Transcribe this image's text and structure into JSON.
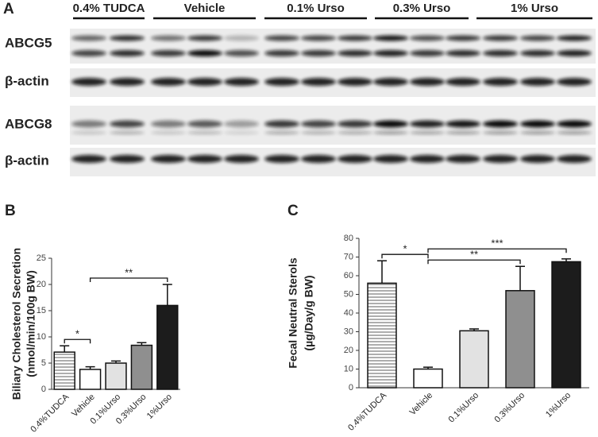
{
  "panel_a": {
    "label": "A",
    "groups": [
      "0.4% TUDCA",
      "Vehicle",
      "0.1% Urso",
      "0.3% Urso",
      "1% Urso"
    ],
    "rows": [
      "ABCG5",
      "β-actin",
      "ABCG8",
      "β-actin"
    ]
  },
  "chart_data": [
    {
      "type": "bar",
      "panel_label": "B",
      "ylabel": [
        "Biliary Cholesterol Secretion",
        "(nmol/min/100g BW)"
      ],
      "categories": [
        "0.4%TUDCA",
        "Vehicle",
        "0.1%Urso",
        "0.3%Urso",
        "1%Urso"
      ],
      "values": [
        7.1,
        3.8,
        5.0,
        8.4,
        16.0
      ],
      "errors": [
        1.2,
        0.5,
        0.4,
        0.5,
        4.0
      ],
      "colors": [
        "#ffffff",
        "#ffffff",
        "#e2e2e2",
        "#8f8f8f",
        "#1c1c1c"
      ],
      "hatched": [
        true,
        false,
        false,
        false,
        false
      ],
      "ylim": [
        0,
        25
      ],
      "yticks": [
        0,
        5,
        10,
        15,
        20,
        25
      ],
      "brackets": [
        {
          "from": 0,
          "to": 1,
          "label": "*"
        },
        {
          "from": 1,
          "to": 4,
          "label": "**"
        }
      ]
    },
    {
      "type": "bar",
      "panel_label": "C",
      "ylabel": [
        "Fecal Neutral Sterols",
        "(µg/Day/g BW)"
      ],
      "categories": [
        "0.4%TUDCA",
        "Vehicle",
        "0.1%Urso",
        "0.3%Urso",
        "1%Urso"
      ],
      "values": [
        56,
        10,
        30.5,
        52,
        67.5
      ],
      "errors": [
        12,
        1,
        1,
        13,
        1.5
      ],
      "colors": [
        "#ffffff",
        "#ffffff",
        "#e2e2e2",
        "#8f8f8f",
        "#1c1c1c"
      ],
      "hatched": [
        true,
        false,
        false,
        false,
        false
      ],
      "ylim": [
        0,
        80
      ],
      "yticks": [
        0,
        10,
        20,
        30,
        40,
        50,
        60,
        70,
        80
      ],
      "brackets": [
        {
          "from": 0,
          "to": 1,
          "label": "*"
        },
        {
          "from": 1,
          "to": 3,
          "label": "**"
        },
        {
          "from": 1,
          "to": 4,
          "label": "***"
        }
      ]
    }
  ]
}
